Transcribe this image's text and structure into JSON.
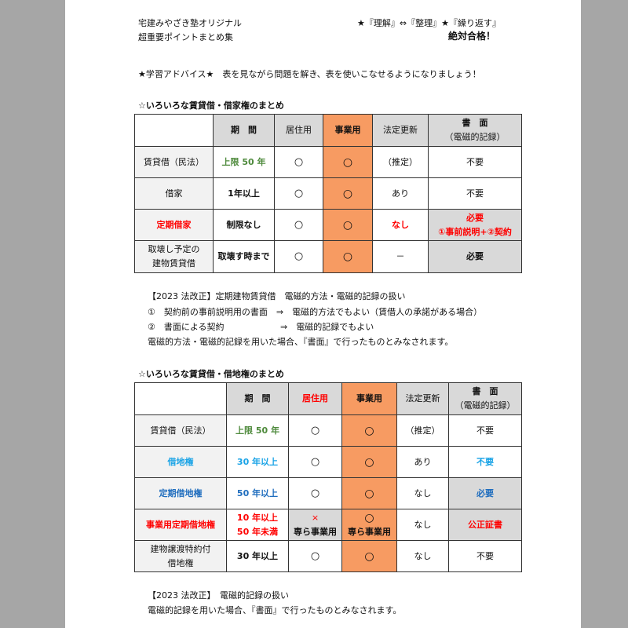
{
  "header": {
    "brand": "宅建みやざき塾オリジナル",
    "subtitle": "超重要ポイントまとめ集",
    "motto": "★『理解』⇔『整理』★『繰り返す』",
    "slogan": "絶対合格！"
  },
  "advice": "★学習アドバイス★　表を見ながら問題を解き、表を使いこなせるようになりましょう！",
  "table1": {
    "title": "☆いろいろな賃貸借・借家権のまとめ",
    "headers": [
      "",
      "期　間",
      "居住用",
      "事業用",
      "法定更新",
      "書　面",
      "（電磁的記録）"
    ],
    "rows": [
      [
        "賃貸借（民法）",
        "上限 50 年",
        "○",
        "○",
        "（推定）",
        "不要",
        ""
      ],
      [
        "借家",
        "1年以上",
        "○",
        "○",
        "あり",
        "不要",
        ""
      ],
      [
        "定期借家",
        "制限なし",
        "○",
        "○",
        "なし",
        "必要",
        "①事前説明+②契約"
      ],
      [
        "取壊し予定の",
        "取壊す時まで",
        "○",
        "○",
        "－",
        "必要",
        "建物賃貸借"
      ]
    ]
  },
  "note1": {
    "title": "【2023 法改正】定期建物賃貸借　電磁的方法・電磁的記録の扱い",
    "line1": "①　契約前の事前説明用の書面　⇒　電磁的方法でもよい（賃借人の承諾がある場合）",
    "line2_a": "②　書面による契約",
    "line2_b": "⇒　電磁的記録でもよい",
    "line3": "電磁的方法・電磁的記録を用いた場合、『書面』で行ったものとみなされます。"
  },
  "table2": {
    "title": "☆いろいろな賃貸借・借地権のまとめ",
    "headers": [
      "",
      "期　間",
      "居住用",
      "事業用",
      "法定更新",
      "書　面",
      "（電磁的記録）"
    ],
    "rows": [
      [
        "賃貸借（民法）",
        "上限 50 年",
        "○",
        "○",
        "（推定）",
        "不要"
      ],
      [
        "借地権",
        "30 年以上",
        "○",
        "○",
        "あり",
        "不要"
      ],
      [
        "定期借地権",
        "50 年以上",
        "○",
        "○",
        "なし",
        "必要"
      ],
      [
        "事業用定期借地権",
        "10 年以上",
        "×",
        "○",
        "なし",
        "公正証書"
      ],
      [
        "建物譲渡特約付",
        "30 年以上",
        "○",
        "○",
        "なし",
        "不要"
      ]
    ],
    "extra": {
      "period_2": "50 年未満",
      "residential_note": "専ら事業用",
      "business_note": "専ら事業用",
      "label_2": "借地権"
    }
  },
  "note2": {
    "title": "【2023 法改正】　電磁的記録の扱い",
    "line1": "電磁的記録を用いた場合、『書面』で行ったものとみなされます。"
  },
  "colors": {
    "business_column": "#f79b62",
    "header_gray": "#d9d9d9",
    "emphasis_red": "#ff0000",
    "green": "#4e8a3c",
    "blue": "#19a3e6",
    "dark_blue": "#1f6dbe"
  }
}
